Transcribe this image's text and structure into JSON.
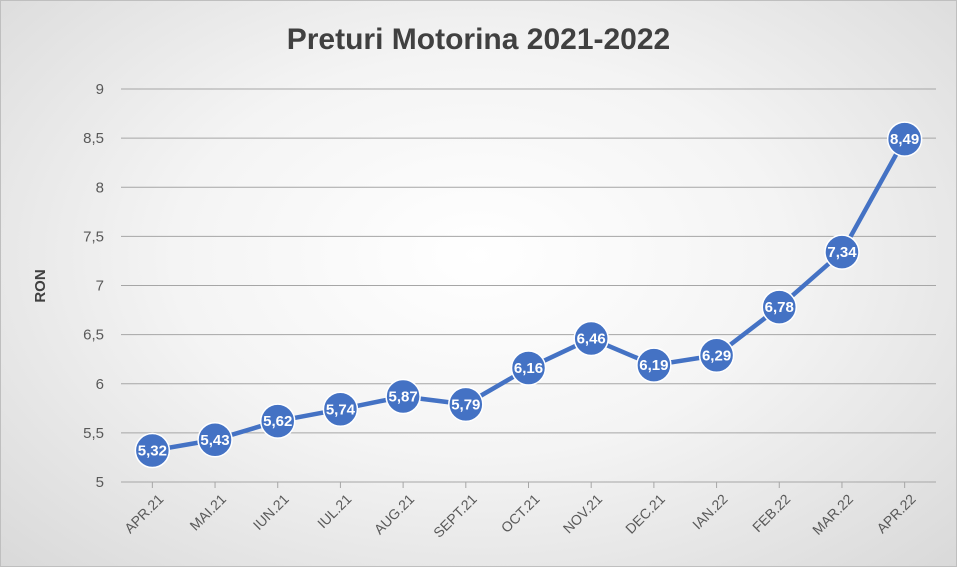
{
  "chart_data": {
    "type": "line",
    "title": "Preturi Motorina 2021-2022",
    "xlabel": "",
    "ylabel": "RON",
    "categories": [
      "APR.21",
      "MAI.21",
      "IUN.21",
      "IUL.21",
      "AUG.21",
      "SEPT.21",
      "OCT.21",
      "NOV.21",
      "DEC.21",
      "IAN.22",
      "FEB.22",
      "MAR.22",
      "APR.22"
    ],
    "series": [
      {
        "values": [
          5.32,
          5.43,
          5.62,
          5.74,
          5.87,
          5.79,
          6.16,
          6.46,
          6.19,
          6.29,
          6.78,
          7.34,
          8.49
        ],
        "labels": [
          "5,32",
          "5,43",
          "5,62",
          "5,74",
          "5,87",
          "5,79",
          "6,16",
          "6,46",
          "6,19",
          "6,29",
          "6,78",
          "7,34",
          "8,49"
        ]
      }
    ],
    "ylim": [
      5,
      9
    ],
    "yticks": [
      5,
      5.5,
      6,
      6.5,
      7,
      7.5,
      8,
      8.5,
      9
    ],
    "ytick_labels": [
      "5",
      "5,5",
      "6",
      "6,5",
      "7",
      "7,5",
      "8",
      "8,5",
      "9"
    ],
    "grid": true,
    "legend": "none",
    "colors": {
      "line": "#4472C4",
      "marker": "#4472C4",
      "marker_border": "#ffffff",
      "grid": "#a6a6a6"
    }
  }
}
